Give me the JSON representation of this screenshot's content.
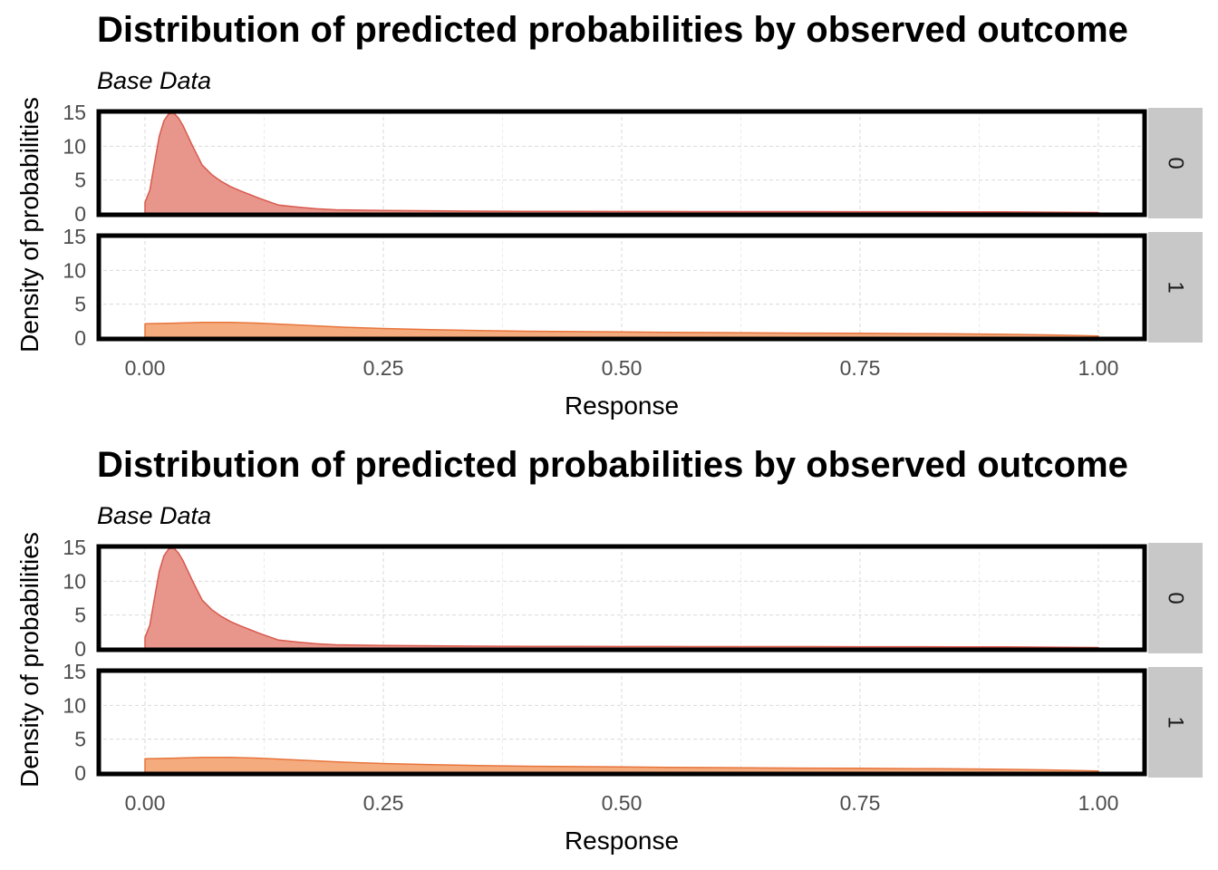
{
  "chart_data": [
    {
      "type": "area",
      "title": "Distribution of predicted probabilities by observed outcome",
      "subtitle": "Base Data",
      "xlabel": "Response",
      "ylabel": "Density of probabilities",
      "xlim": [
        0,
        1
      ],
      "ylim": [
        0,
        15
      ],
      "x_ticks": [
        0,
        0.25,
        0.5,
        0.75,
        1
      ],
      "x_tick_labels": [
        "0.00",
        "0.25",
        "0.50",
        "0.75",
        "1.00"
      ],
      "y_ticks": [
        0,
        5,
        10,
        15
      ],
      "y_tick_labels": [
        "0",
        "5",
        "10",
        "15"
      ],
      "grid": true,
      "facets": [
        {
          "label": "0",
          "color": "#d9594c",
          "fill": "#e8968c",
          "x": [
            0,
            0.005,
            0.01,
            0.015,
            0.02,
            0.025,
            0.03,
            0.035,
            0.04,
            0.045,
            0.05,
            0.06,
            0.07,
            0.08,
            0.09,
            0.1,
            0.12,
            0.14,
            0.16,
            0.18,
            0.2,
            0.25,
            0.3,
            0.35,
            0.4,
            0.45,
            0.5,
            0.55,
            0.6,
            0.65,
            0.7,
            0.75,
            0.8,
            0.85,
            0.9,
            0.95,
            1.0
          ],
          "y": [
            1.7,
            3.5,
            7.5,
            11.5,
            13.8,
            14.8,
            14.9,
            14.2,
            13.0,
            11.5,
            10.0,
            7.2,
            5.8,
            4.8,
            4.0,
            3.4,
            2.3,
            1.3,
            1.0,
            0.75,
            0.6,
            0.5,
            0.45,
            0.4,
            0.38,
            0.36,
            0.35,
            0.35,
            0.34,
            0.33,
            0.33,
            0.32,
            0.32,
            0.31,
            0.3,
            0.25,
            0.2
          ]
        },
        {
          "label": "1",
          "color": "#e8743b",
          "fill": "#f4ac7f",
          "x": [
            0,
            0.03,
            0.06,
            0.09,
            0.12,
            0.15,
            0.18,
            0.21,
            0.25,
            0.3,
            0.35,
            0.4,
            0.45,
            0.5,
            0.55,
            0.6,
            0.65,
            0.7,
            0.75,
            0.8,
            0.85,
            0.9,
            0.95,
            1.0
          ],
          "y": [
            2.1,
            2.2,
            2.3,
            2.3,
            2.2,
            2.0,
            1.8,
            1.6,
            1.4,
            1.25,
            1.1,
            1.0,
            0.95,
            0.9,
            0.85,
            0.8,
            0.75,
            0.72,
            0.7,
            0.66,
            0.62,
            0.55,
            0.45,
            0.3
          ]
        }
      ]
    },
    {
      "type": "area",
      "title": "Distribution of predicted probabilities by observed outcome",
      "subtitle": "Base Data",
      "xlabel": "Response",
      "ylabel": "Density of probabilities",
      "xlim": [
        0,
        1
      ],
      "ylim": [
        0,
        15
      ],
      "x_ticks": [
        0,
        0.25,
        0.5,
        0.75,
        1
      ],
      "x_tick_labels": [
        "0.00",
        "0.25",
        "0.50",
        "0.75",
        "1.00"
      ],
      "y_ticks": [
        0,
        5,
        10,
        15
      ],
      "y_tick_labels": [
        "0",
        "5",
        "10",
        "15"
      ],
      "grid": true,
      "facets": [
        {
          "label": "0",
          "color": "#d9594c",
          "fill": "#e8968c",
          "x": [
            0,
            0.005,
            0.01,
            0.015,
            0.02,
            0.025,
            0.03,
            0.035,
            0.04,
            0.045,
            0.05,
            0.06,
            0.07,
            0.08,
            0.09,
            0.1,
            0.12,
            0.14,
            0.16,
            0.18,
            0.2,
            0.25,
            0.3,
            0.35,
            0.4,
            0.45,
            0.5,
            0.55,
            0.6,
            0.65,
            0.7,
            0.75,
            0.8,
            0.85,
            0.9,
            0.95,
            1.0
          ],
          "y": [
            1.7,
            3.5,
            7.5,
            11.5,
            13.8,
            14.8,
            14.9,
            14.2,
            13.0,
            11.5,
            10.0,
            7.2,
            5.8,
            4.8,
            4.0,
            3.4,
            2.3,
            1.3,
            1.0,
            0.75,
            0.6,
            0.5,
            0.45,
            0.4,
            0.38,
            0.36,
            0.35,
            0.35,
            0.34,
            0.33,
            0.33,
            0.32,
            0.32,
            0.31,
            0.3,
            0.25,
            0.2
          ]
        },
        {
          "label": "1",
          "color": "#e8743b",
          "fill": "#f4ac7f",
          "x": [
            0,
            0.03,
            0.06,
            0.09,
            0.12,
            0.15,
            0.18,
            0.21,
            0.25,
            0.3,
            0.35,
            0.4,
            0.45,
            0.5,
            0.55,
            0.6,
            0.65,
            0.7,
            0.75,
            0.8,
            0.85,
            0.9,
            0.95,
            1.0
          ],
          "y": [
            2.1,
            2.2,
            2.3,
            2.3,
            2.2,
            2.0,
            1.8,
            1.6,
            1.4,
            1.25,
            1.1,
            1.0,
            0.95,
            0.9,
            0.85,
            0.8,
            0.75,
            0.72,
            0.7,
            0.66,
            0.62,
            0.55,
            0.45,
            0.3
          ]
        }
      ]
    }
  ]
}
